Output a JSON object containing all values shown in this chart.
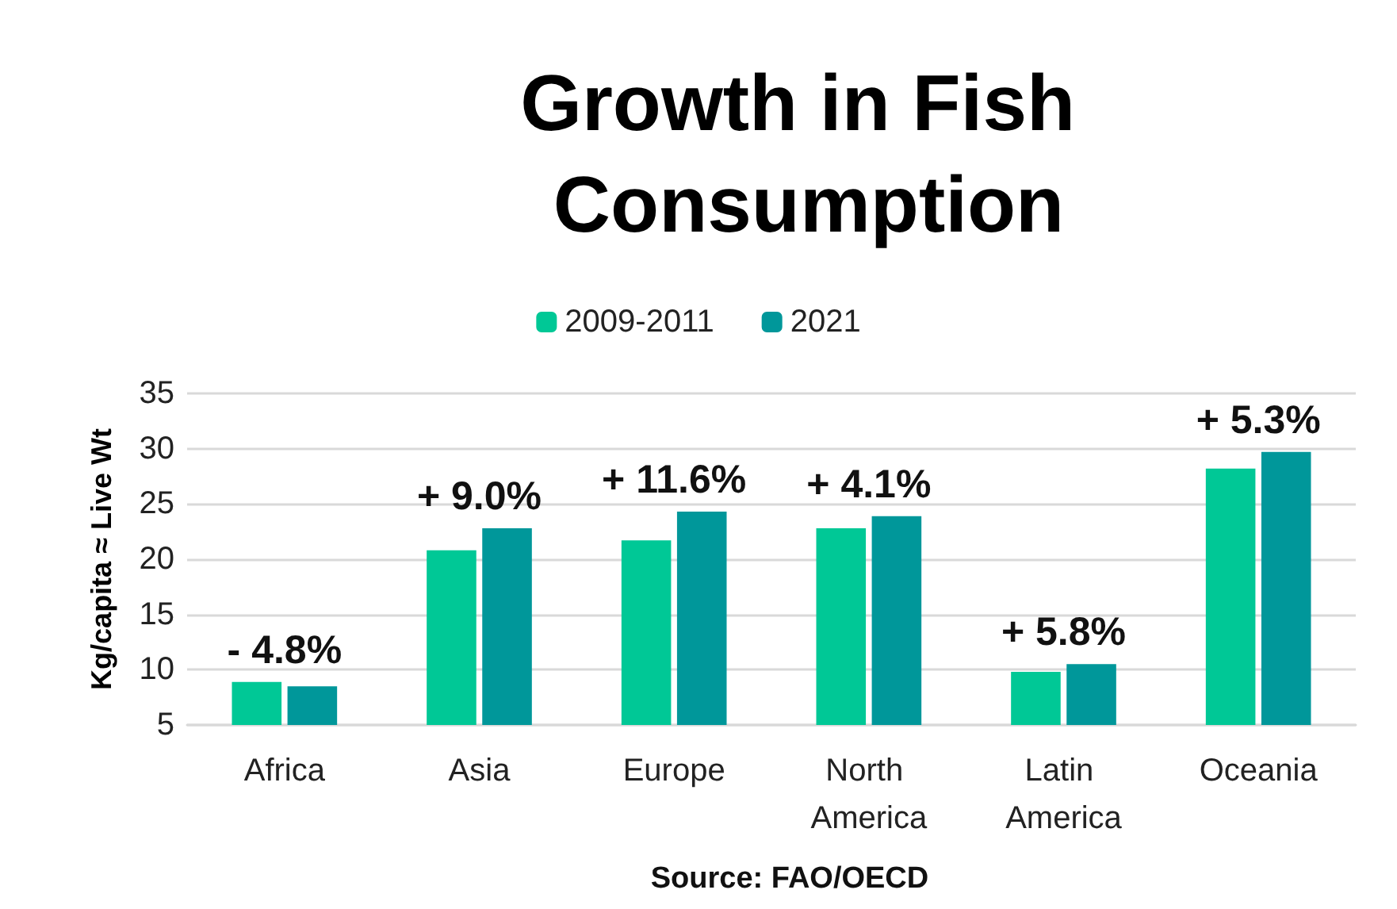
{
  "chart_data": {
    "type": "bar",
    "title": "Growth in Fish Consumption",
    "ylabel": "Kg/capita ≈ Live Wt",
    "categories": [
      "Africa",
      "Asia",
      "Europe",
      "North America",
      "Latin America",
      "Oceania"
    ],
    "series": [
      {
        "name": "2009-2011",
        "color": "#00c896",
        "values": [
          8.9,
          20.8,
          21.7,
          22.8,
          9.8,
          28.2
        ]
      },
      {
        "name": "2021",
        "color": "#00979a",
        "values": [
          8.5,
          22.8,
          24.3,
          23.9,
          10.5,
          29.7
        ]
      }
    ],
    "ylim": [
      5,
      35
    ],
    "yticks": [
      5,
      10,
      15,
      20,
      25,
      30,
      35
    ],
    "grid": "y",
    "legend": "top",
    "annotations": [
      "- 4.8%",
      "+ 9.0%",
      "+ 11.6%",
      "+ 4.1%",
      "+ 5.8%",
      "+ 5.3%",
      "Source: FAO/OECD"
    ]
  }
}
